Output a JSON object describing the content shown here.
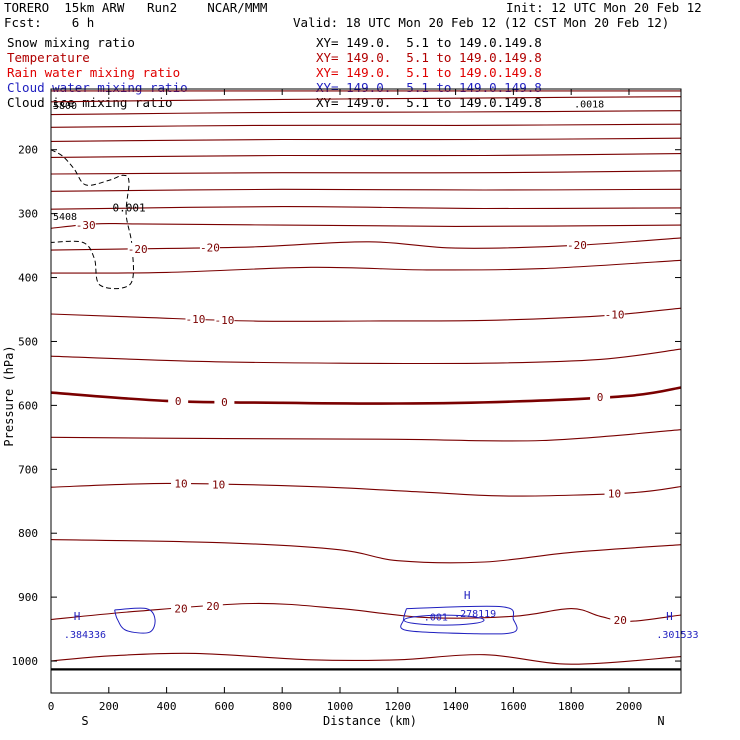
{
  "header": {
    "model": "TORERO  15km ARW   Run2    NCAR/MMM",
    "init": "Init: 12 UTC Mon 20 Feb 12",
    "fcst": "Fcst:    6 h",
    "valid": "Valid: 18 UTC Mon 20 Feb 12 (12 CST Mon 20 Feb 12)"
  },
  "fields": [
    {
      "name": "Snow mixing ratio",
      "xy": "XY= 149.0.  5.1 to 149.0.149.8",
      "color": "#000000"
    },
    {
      "name": "Temperature",
      "xy": "XY= 149.0.  5.1 to 149.0.149.8",
      "color": "#b00000"
    },
    {
      "name": "Rain water mixing ratio",
      "xy": "XY= 149.0.  5.1 to 149.0.149.8",
      "color": "#e00000"
    },
    {
      "name": "Cloud water mixing ratio",
      "xy": "XY= 149.0.  5.1 to 149.0.149.8",
      "color": "#1f1fbf"
    },
    {
      "name": "Cloud ice mixing ratio",
      "xy": "XY= 149.0.  5.1 to 149.0.149.8",
      "color": "#000000"
    }
  ],
  "chart_data": {
    "type": "contour-cross-section",
    "xlabel": "Distance (km)",
    "ylabel": "Pressure (hPa)",
    "xlim": [
      0,
      2180
    ],
    "ylim": [
      1050,
      105
    ],
    "x_ticks": [
      0,
      200,
      400,
      600,
      800,
      1000,
      1200,
      1400,
      1600,
      1800,
      2000
    ],
    "y_ticks": [
      200,
      300,
      400,
      500,
      600,
      700,
      800,
      900,
      1000
    ],
    "endpoint_labels": {
      "left": "S",
      "right": "N"
    },
    "colors": {
      "temperature": "#7a0000",
      "cloud_water": "#1f1fbf",
      "cloud_ice": "#000000",
      "frame": "#000000"
    },
    "temperature_contours": [
      {
        "value": null,
        "points": [
          [
            0,
            108
          ],
          [
            2180,
            108
          ]
        ]
      },
      {
        "value": null,
        "points": [
          [
            0,
            125
          ],
          [
            600,
            122
          ],
          [
            1200,
            120
          ],
          [
            1800,
            118
          ],
          [
            2180,
            117
          ]
        ]
      },
      {
        "value": null,
        "points": [
          [
            0,
            145
          ],
          [
            700,
            142
          ],
          [
            1400,
            141
          ],
          [
            2180,
            139
          ]
        ]
      },
      {
        "value": null,
        "points": [
          [
            0,
            165
          ],
          [
            700,
            162
          ],
          [
            1400,
            162
          ],
          [
            2180,
            160
          ]
        ]
      },
      {
        "value": null,
        "points": [
          [
            0,
            187
          ],
          [
            800,
            184
          ],
          [
            1500,
            184
          ],
          [
            2180,
            182
          ]
        ]
      },
      {
        "value": null,
        "points": [
          [
            0,
            212
          ],
          [
            800,
            209
          ],
          [
            1500,
            209
          ],
          [
            2180,
            206
          ]
        ]
      },
      {
        "value": null,
        "points": [
          [
            0,
            238
          ],
          [
            800,
            236
          ],
          [
            1500,
            236
          ],
          [
            2180,
            233
          ]
        ]
      },
      {
        "value": null,
        "points": [
          [
            0,
            265
          ],
          [
            800,
            262
          ],
          [
            1500,
            263
          ],
          [
            2180,
            262
          ]
        ]
      },
      {
        "value": null,
        "points": [
          [
            0,
            293
          ],
          [
            800,
            289
          ],
          [
            1500,
            292
          ],
          [
            2180,
            291
          ]
        ]
      },
      {
        "value": -30,
        "points": [
          [
            0,
            323
          ],
          [
            150,
            316
          ],
          [
            300,
            316
          ],
          [
            800,
            318
          ],
          [
            1400,
            320
          ],
          [
            2180,
            318
          ]
        ]
      },
      {
        "value": -20,
        "points": [
          [
            0,
            357
          ],
          [
            300,
            355
          ],
          [
            700,
            352
          ],
          [
            1100,
            344
          ],
          [
            1400,
            354
          ],
          [
            1800,
            350
          ],
          [
            2180,
            338
          ]
        ]
      },
      {
        "value": null,
        "points": [
          [
            0,
            393
          ],
          [
            400,
            392
          ],
          [
            900,
            384
          ],
          [
            1300,
            388
          ],
          [
            1700,
            386
          ],
          [
            2180,
            373
          ]
        ]
      },
      {
        "value": -10,
        "points": [
          [
            0,
            457
          ],
          [
            300,
            462
          ],
          [
            700,
            468
          ],
          [
            1100,
            468
          ],
          [
            1500,
            467
          ],
          [
            1900,
            460
          ],
          [
            2180,
            448
          ]
        ]
      },
      {
        "value": null,
        "points": [
          [
            0,
            523
          ],
          [
            500,
            531
          ],
          [
            1000,
            534
          ],
          [
            1500,
            534
          ],
          [
            1900,
            528
          ],
          [
            2180,
            512
          ]
        ]
      },
      {
        "value": 0,
        "points": [
          [
            0,
            580
          ],
          [
            400,
            593
          ],
          [
            800,
            596
          ],
          [
            1200,
            597
          ],
          [
            1600,
            594
          ],
          [
            2000,
            585
          ],
          [
            2180,
            572
          ]
        ]
      },
      {
        "value": null,
        "points": [
          [
            0,
            650
          ],
          [
            600,
            652
          ],
          [
            1200,
            653
          ],
          [
            1700,
            655
          ],
          [
            2180,
            638
          ]
        ]
      },
      {
        "value": 10,
        "points": [
          [
            0,
            728
          ],
          [
            400,
            722
          ],
          [
            900,
            727
          ],
          [
            1300,
            736
          ],
          [
            1600,
            742
          ],
          [
            2000,
            737
          ],
          [
            2180,
            727
          ]
        ]
      },
      {
        "value": null,
        "points": [
          [
            0,
            810
          ],
          [
            600,
            815
          ],
          [
            1000,
            826
          ],
          [
            1200,
            843
          ],
          [
            1500,
            845
          ],
          [
            1800,
            830
          ],
          [
            2180,
            818
          ]
        ]
      },
      {
        "value": 20,
        "points": [
          [
            0,
            935
          ],
          [
            300,
            922
          ],
          [
            700,
            910
          ],
          [
            1000,
            918
          ],
          [
            1300,
            932
          ],
          [
            1600,
            930
          ],
          [
            1800,
            918
          ],
          [
            1900,
            930
          ],
          [
            2000,
            938
          ],
          [
            2180,
            928
          ]
        ]
      },
      {
        "value": null,
        "points": [
          [
            0,
            1000
          ],
          [
            200,
            992
          ],
          [
            500,
            988
          ],
          [
            900,
            998
          ],
          [
            1200,
            998
          ],
          [
            1500,
            990
          ],
          [
            1800,
            1005
          ],
          [
            2180,
            993
          ]
        ]
      }
    ],
    "cloud_ice_contours": [
      {
        "value": 0.001,
        "points": [
          [
            0,
            200
          ],
          [
            40,
            210
          ],
          [
            80,
            230
          ],
          [
            120,
            255
          ],
          [
            200,
            248
          ],
          [
            250,
            240
          ],
          [
            270,
            250
          ],
          [
            260,
            300
          ],
          [
            280,
            350
          ],
          [
            275,
            410
          ],
          [
            170,
            412
          ],
          [
            150,
            370
          ],
          [
            110,
            345
          ],
          [
            0,
            345
          ]
        ]
      }
    ],
    "cloud_water_contours": [
      {
        "value": 0.001,
        "points": [
          [
            220,
            920
          ],
          [
            330,
            918
          ],
          [
            360,
            935
          ],
          [
            340,
            955
          ],
          [
            260,
            952
          ],
          [
            230,
            935
          ]
        ]
      },
      {
        "value": 0.001,
        "points": [
          [
            1230,
            918
          ],
          [
            1560,
            915
          ],
          [
            1600,
            935
          ],
          [
            1600,
            955
          ],
          [
            1450,
            957
          ],
          [
            1230,
            952
          ],
          [
            1220,
            935
          ]
        ]
      }
    ],
    "cloud_water_maxima": [
      {
        "x": 90,
        "y": 945,
        "h": "H",
        "label": ".384336"
      },
      {
        "x": 1440,
        "y": 912,
        "h": "H",
        "label": ".278119"
      },
      {
        "x": 2140,
        "y": 945,
        "h": "H",
        "label": ".301533"
      }
    ],
    "annotations": [
      {
        "x": 0,
        "y": 130,
        "text": "5800",
        "field": "cloud_ice"
      },
      {
        "x": 1810,
        "y": 128,
        "text": ".0018",
        "field": "cloud_ice"
      },
      {
        "x": 0,
        "y": 304,
        "text": "5408",
        "field": "cloud_ice"
      },
      {
        "x": 1290,
        "y": 930,
        "text": ".001",
        "field": "cloud_water"
      }
    ],
    "surface_line": {
      "pressure": 1013
    }
  }
}
